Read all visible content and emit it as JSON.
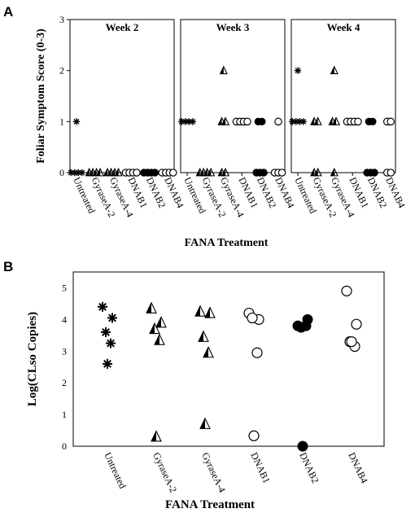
{
  "figure": {
    "panel_a_letter": "A",
    "panel_b_letter": "B"
  },
  "chart_data": [
    {
      "type": "scatter",
      "panel": "A",
      "facets": [
        "Week 2",
        "Week 3",
        "Week 4"
      ],
      "ylabel": "Foliar Symptom Score (0-3)",
      "xlabel": "FANA Treatment",
      "ylim": [
        0,
        3
      ],
      "yticks": [
        0,
        1,
        2,
        3
      ],
      "categories": [
        "Untreated",
        "GyraseA-2",
        "GyraseA-4",
        "DNAB1",
        "DNAB2",
        "DNAB4"
      ],
      "marker_styles": {
        "Untreated": "asterisk",
        "GyraseA-2": "half-triangle",
        "GyraseA-4": "half-triangle",
        "DNAB1": "open-circle",
        "DNAB2": "filled-circle",
        "DNAB4": "open-circle"
      },
      "series": [
        {
          "week": "Week 2",
          "points": {
            "Untreated": [
              1,
              0,
              0,
              0,
              0
            ],
            "GyraseA-2": [
              0,
              0,
              0,
              0
            ],
            "GyraseA-4": [
              0,
              0,
              0,
              0
            ],
            "DNAB1": [
              0,
              0,
              0,
              0
            ],
            "DNAB2": [
              0,
              0,
              0,
              0
            ],
            "DNAB4": [
              0,
              0,
              0,
              0
            ]
          }
        },
        {
          "week": "Week 3",
          "points": {
            "Untreated": [
              1,
              1,
              1,
              1
            ],
            "GyraseA-2": [
              0,
              0,
              0,
              0
            ],
            "GyraseA-4": [
              2,
              1,
              1,
              0,
              0
            ],
            "DNAB1": [
              1,
              1,
              1,
              1
            ],
            "DNAB2": [
              1,
              1,
              0,
              0,
              0
            ],
            "DNAB4": [
              1,
              0,
              0,
              0
            ]
          }
        },
        {
          "week": "Week 4",
          "points": {
            "Untreated": [
              2,
              1,
              1,
              1,
              1
            ],
            "GyraseA-2": [
              1,
              1,
              0,
              0
            ],
            "GyraseA-4": [
              2,
              1,
              1,
              0
            ],
            "DNAB1": [
              1,
              1,
              1,
              1
            ],
            "DNAB2": [
              1,
              1,
              0,
              0,
              0
            ],
            "DNAB4": [
              1,
              1,
              0,
              0
            ]
          }
        }
      ]
    },
    {
      "type": "scatter",
      "panel": "B",
      "ylabel": "Log(CLso Copies)",
      "xlabel": "FANA Treatment",
      "ylim": [
        0,
        5.5
      ],
      "yticks": [
        0,
        1,
        2,
        3,
        4,
        5
      ],
      "categories": [
        "Untreated",
        "GyraseA-2",
        "GyraseA-4",
        "DNAB1",
        "DNAB2",
        "DNAB4"
      ],
      "marker_styles": {
        "Untreated": "asterisk",
        "GyraseA-2": "half-triangle",
        "GyraseA-4": "half-triangle",
        "DNAB1": "open-circle",
        "DNAB2": "filled-circle",
        "DNAB4": "open-circle"
      },
      "points": {
        "Untreated": [
          4.4,
          4.05,
          3.6,
          3.25,
          2.6
        ],
        "GyraseA-2": [
          4.35,
          3.9,
          3.7,
          3.35,
          0.3
        ],
        "GyraseA-4": [
          4.25,
          4.2,
          3.45,
          2.95,
          0.7
        ],
        "DNAB1": [
          4.2,
          4.0,
          4.05,
          2.95,
          0.33
        ],
        "DNAB2": [
          3.8,
          4.0,
          3.75,
          3.8,
          0.0
        ],
        "DNAB4": [
          4.9,
          3.85,
          3.3,
          3.15,
          3.3
        ]
      }
    }
  ]
}
